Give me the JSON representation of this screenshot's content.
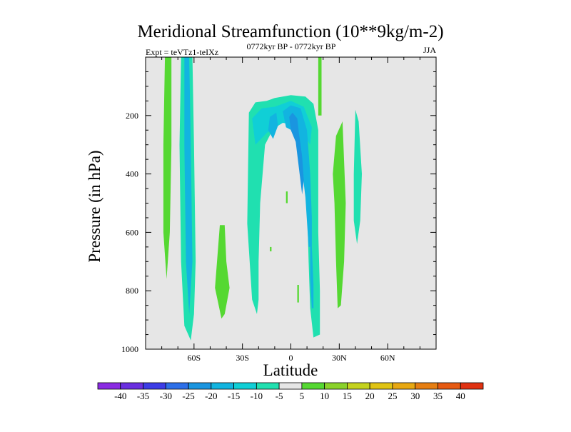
{
  "chart_data": {
    "type": "heatmap",
    "title": "Meridional Streamfunction (10**9kg/m-2)",
    "left_subtitle": "Expt = teVTz1-teIXz",
    "center_subtitle": "0772kyr BP - 0772kyr BP",
    "right_subtitle": "JJA",
    "xlabel": "Latitude",
    "ylabel": "Pressure (in hPa)",
    "xlim": [
      -90,
      90
    ],
    "ylim": [
      1000,
      0
    ],
    "x_ticks": [
      {
        "value": -60,
        "label": "60S"
      },
      {
        "value": -30,
        "label": "30S"
      },
      {
        "value": 0,
        "label": "0"
      },
      {
        "value": 30,
        "label": "30N"
      },
      {
        "value": 60,
        "label": "60N"
      }
    ],
    "y_ticks": [
      {
        "value": 200,
        "label": "200"
      },
      {
        "value": 400,
        "label": "400"
      },
      {
        "value": 600,
        "label": "600"
      },
      {
        "value": 800,
        "label": "800"
      },
      {
        "value": 1000,
        "label": "1000"
      }
    ],
    "background_color": "#e6e6e6",
    "colorbar": {
      "labels": [
        "-40",
        "-35",
        "-30",
        "-25",
        "-20",
        "-15",
        "-10",
        "-5",
        "5",
        "10",
        "15",
        "20",
        "25",
        "30",
        "35",
        "40"
      ],
      "colors": [
        "#8a2be2",
        "#6a2fe0",
        "#3c3ce6",
        "#2d6fe8",
        "#1a95e0",
        "#12b4e0",
        "#10cfd6",
        "#20e0b0",
        "#e6e6e6",
        "#55d832",
        "#8ad22a",
        "#c4d21e",
        "#e0c414",
        "#e8a812",
        "#e67e12",
        "#e65a12",
        "#e03212"
      ]
    },
    "regions": [
      {
        "name": "green-strip-80s",
        "value": 7,
        "pts": [
          [
            -78,
            0
          ],
          [
            -74,
            0
          ],
          [
            -74,
            300
          ],
          [
            -75,
            600
          ],
          [
            -77,
            760
          ],
          [
            -79,
            600
          ],
          [
            -79,
            300
          ]
        ]
      },
      {
        "name": "cyan-strip-70s",
        "value": -7,
        "pts": [
          [
            -68,
            0
          ],
          [
            -61,
            0
          ],
          [
            -60,
            300
          ],
          [
            -59,
            700
          ],
          [
            -60,
            880
          ],
          [
            -62,
            970
          ],
          [
            -66,
            920
          ],
          [
            -68,
            700
          ],
          [
            -69,
            300
          ]
        ]
      },
      {
        "name": "blue-core-70s",
        "value": -17,
        "pts": [
          [
            -66,
            0
          ],
          [
            -63,
            0
          ],
          [
            -62,
            300
          ],
          [
            -61,
            700
          ],
          [
            -63,
            880
          ],
          [
            -65,
            700
          ],
          [
            -66,
            300
          ]
        ]
      },
      {
        "name": "green-blob-40s",
        "value": 7,
        "pts": [
          [
            -44,
            575
          ],
          [
            -41,
            575
          ],
          [
            -40,
            700
          ],
          [
            -38,
            790
          ],
          [
            -41,
            880
          ],
          [
            -43,
            895
          ],
          [
            -47,
            790
          ]
        ]
      },
      {
        "name": "cyan-tropical-cell",
        "value": -7,
        "pts": [
          [
            -27,
            570
          ],
          [
            -26,
            190
          ],
          [
            -22,
            155
          ],
          [
            -15,
            150
          ],
          [
            -10,
            140
          ],
          [
            0,
            130
          ],
          [
            9,
            135
          ],
          [
            14,
            160
          ],
          [
            17,
            250
          ],
          [
            17,
            400
          ],
          [
            17,
            600
          ],
          [
            18,
            800
          ],
          [
            18,
            950
          ],
          [
            14,
            960
          ],
          [
            12,
            860
          ],
          [
            11,
            700
          ],
          [
            10,
            500
          ],
          [
            9,
            400
          ],
          [
            3,
            240
          ],
          [
            -3,
            220
          ],
          [
            -10,
            235
          ],
          [
            -16,
            300
          ],
          [
            -19,
            500
          ],
          [
            -20,
            700
          ],
          [
            -20,
            830
          ],
          [
            -21,
            880
          ],
          [
            -24,
            830
          ]
        ]
      },
      {
        "name": "cyan-upper-band",
        "value": -12,
        "pts": [
          [
            -24,
            210
          ],
          [
            -18,
            175
          ],
          [
            -10,
            170
          ],
          [
            0,
            150
          ],
          [
            8,
            170
          ],
          [
            13,
            240
          ],
          [
            12,
            300
          ],
          [
            5,
            235
          ],
          [
            -5,
            225
          ],
          [
            -15,
            260
          ],
          [
            -22,
            300
          ]
        ]
      },
      {
        "name": "blue-core-main",
        "value": -17,
        "pts": [
          [
            -5,
            185
          ],
          [
            0,
            165
          ],
          [
            6,
            175
          ],
          [
            10,
            250
          ],
          [
            12,
            400
          ],
          [
            13,
            550
          ],
          [
            13,
            650
          ],
          [
            11,
            650
          ],
          [
            9,
            480
          ],
          [
            6,
            340
          ],
          [
            2,
            255
          ],
          [
            -3,
            240
          ]
        ]
      },
      {
        "name": "blue-inner-core",
        "value": -22,
        "pts": [
          [
            -1,
            205
          ],
          [
            1,
            190
          ],
          [
            4,
            210
          ],
          [
            5,
            260
          ],
          [
            7,
            340
          ],
          [
            8,
            420
          ],
          [
            7,
            470
          ],
          [
            5,
            380
          ],
          [
            3,
            290
          ],
          [
            0,
            250
          ]
        ]
      },
      {
        "name": "blue-core-left",
        "value": -17,
        "pts": [
          [
            -13,
            205
          ],
          [
            -9,
            190
          ],
          [
            -8,
            235
          ],
          [
            -11,
            280
          ],
          [
            -14,
            250
          ]
        ]
      },
      {
        "name": "blue-lower-extension",
        "value": -17,
        "pts": [
          [
            12,
            650
          ],
          [
            13,
            650
          ],
          [
            14,
            780
          ],
          [
            14,
            860
          ],
          [
            13,
            860
          ],
          [
            12,
            760
          ]
        ]
      },
      {
        "name": "green-dot-upper",
        "value": 7,
        "pts": [
          [
            -3,
            460
          ],
          [
            -2,
            460
          ],
          [
            -2,
            500
          ],
          [
            -3,
            500
          ]
        ]
      },
      {
        "name": "green-dot-mid",
        "value": 7,
        "pts": [
          [
            -13,
            650
          ],
          [
            -12,
            650
          ],
          [
            -12,
            665
          ],
          [
            -13,
            665
          ]
        ]
      },
      {
        "name": "green-dot-low",
        "value": 7,
        "pts": [
          [
            4,
            780
          ],
          [
            5,
            780
          ],
          [
            5,
            840
          ],
          [
            4,
            840
          ]
        ]
      },
      {
        "name": "green-strip-30n",
        "value": 7,
        "pts": [
          [
            17,
            0
          ],
          [
            19,
            0
          ],
          [
            19,
            200
          ],
          [
            17,
            200
          ]
        ]
      },
      {
        "name": "green-right-plume",
        "value": 7,
        "pts": [
          [
            28,
            270
          ],
          [
            32,
            220
          ],
          [
            34,
            500
          ],
          [
            33,
            700
          ],
          [
            31,
            850
          ],
          [
            29,
            860
          ],
          [
            28,
            700
          ],
          [
            27,
            500
          ],
          [
            26,
            400
          ]
        ]
      },
      {
        "name": "cyan-small-40n",
        "value": -7,
        "pts": [
          [
            40,
            180
          ],
          [
            42,
            220
          ],
          [
            44,
            400
          ],
          [
            43,
            560
          ],
          [
            41,
            640
          ],
          [
            39,
            560
          ],
          [
            39,
            400
          ]
        ]
      }
    ]
  }
}
